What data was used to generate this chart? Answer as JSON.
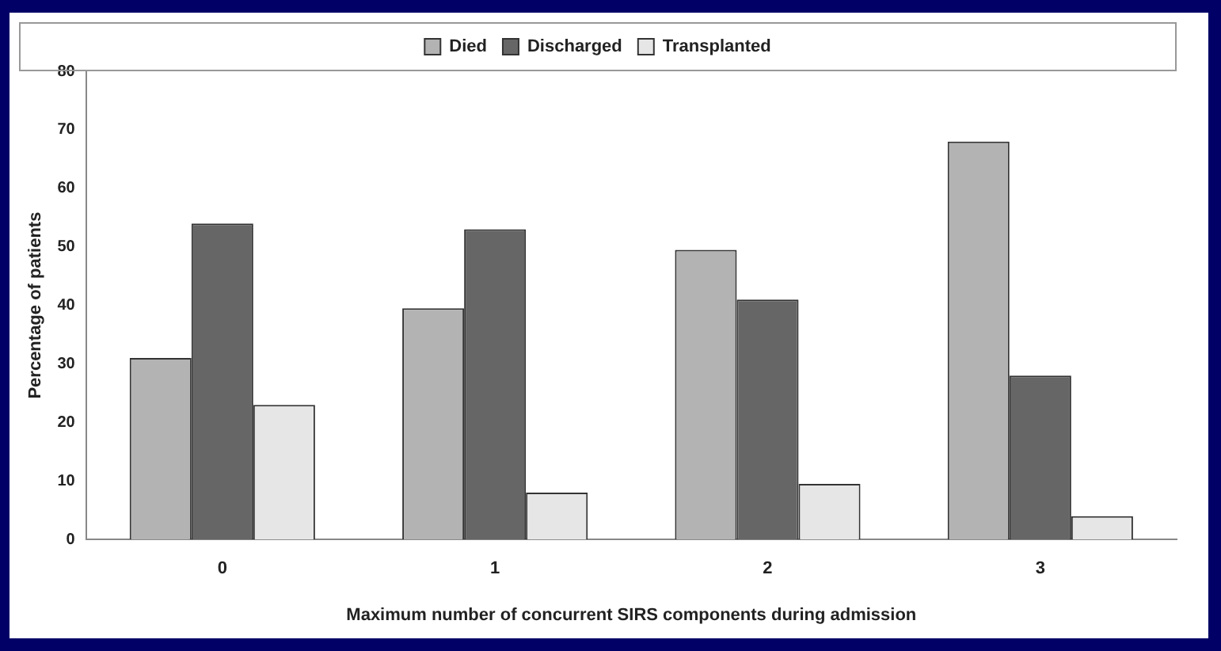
{
  "chart_data": {
    "type": "bar",
    "xlabel": "Maximum number of concurrent SIRS components during admission",
    "ylabel": "Percentage of patients",
    "categories": [
      "0",
      "1",
      "2",
      "3"
    ],
    "series": [
      {
        "name": "Died",
        "color": "#b3b3b3",
        "values": [
          31,
          39.5,
          49.5,
          68
        ]
      },
      {
        "name": "Discharged",
        "color": "#666666",
        "values": [
          54,
          53,
          41,
          28
        ]
      },
      {
        "name": "Transplanted",
        "color": "#e6e6e6",
        "values": [
          23,
          8,
          9.5,
          4
        ]
      }
    ],
    "ylim": [
      0,
      80
    ],
    "yticks": [
      0,
      10,
      20,
      30,
      40,
      50,
      60,
      70,
      80
    ],
    "grid": false,
    "legend": "top"
  }
}
